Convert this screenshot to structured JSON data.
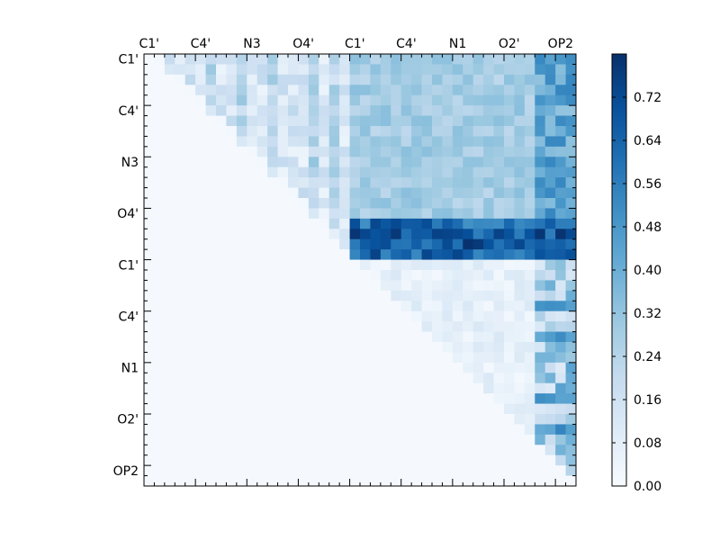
{
  "chart_data": {
    "type": "heatmap",
    "title": "",
    "xlabel": "",
    "ylabel": "",
    "n": 42,
    "axis_tick_labels": [
      "C1'",
      "C4'",
      "N3",
      "O4'",
      "C1'",
      "C4'",
      "N1",
      "O2'",
      "OP2"
    ],
    "major_tick_every": 5,
    "y_tick_labels_shown_top_to_bottom": [
      "C1'",
      "C4'",
      "N3",
      "O4'",
      "C1'",
      "C4'",
      "N1",
      "O2'",
      "OP2"
    ],
    "colorbar": {
      "min": 0.0,
      "max": 0.8,
      "ticks": [
        "0.00",
        "0.08",
        "0.16",
        "0.24",
        "0.32",
        "0.40",
        "0.48",
        "0.56",
        "0.64",
        "0.72"
      ],
      "colormap": "Blues",
      "colors": [
        "#f7fbff",
        "#deebf7",
        "#c6dbef",
        "#9ecae1",
        "#6baed6",
        "#4292c6",
        "#2171b5",
        "#08519c",
        "#08306b"
      ]
    },
    "value_bands": {
      "default": 0.01,
      "upper_left_block": {
        "rows": [
          0,
          19
        ],
        "cols": [
          1,
          19
        ],
        "typical": [
          0.03,
          0.3
        ]
      },
      "upper_right_block": {
        "rows": [
          0,
          19
        ],
        "cols": [
          20,
          41
        ],
        "typical": [
          0.22,
          0.34
        ]
      },
      "strong_rows": {
        "rows": [
          16,
          19
        ],
        "cols": [
          20,
          41
        ],
        "typical": [
          0.5,
          0.8
        ]
      },
      "op2_columns": {
        "rows": [
          0,
          41
        ],
        "cols": [
          38,
          41
        ],
        "typical": [
          0.3,
          0.6
        ]
      },
      "lower_right_diagonal": {
        "rows": [
          20,
          41
        ],
        "cols": [
          21,
          41
        ],
        "typical": [
          0.05,
          0.22
        ]
      }
    }
  }
}
